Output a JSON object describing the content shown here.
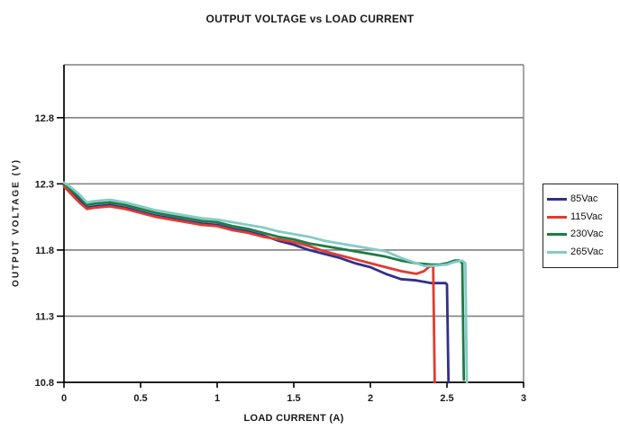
{
  "title": "OUTPUT VOLTAGE vs LOAD CURRENT",
  "colors": {
    "background": "#ffffff",
    "gridline": "#808080",
    "frame": "#808080",
    "axis": "#000000",
    "legend_border": "#222222",
    "text": "#1a1a1a"
  },
  "legend": {
    "position": "right",
    "items": [
      "85Vac",
      "115Vac",
      "230Vac",
      "265Vac"
    ]
  },
  "chart_data": {
    "type": "line",
    "title": "OUTPUT VOLTAGE vs LOAD CURRENT",
    "xlabel": "LOAD CURRENT (A)",
    "ylabel": "OUTPUT VOLTAGE (V)",
    "xlim": [
      0,
      3
    ],
    "ylim": [
      10.8,
      13.2
    ],
    "x_ticks": [
      0,
      0.5,
      1,
      1.5,
      2,
      2.5,
      3
    ],
    "x_tick_labels": [
      "0",
      "0.5",
      "1",
      "1.5",
      "2",
      "2.5",
      "3"
    ],
    "y_ticks": [
      10.8,
      11.3,
      11.8,
      12.3,
      12.8
    ],
    "y_tick_labels": [
      "10.8",
      "11.3",
      "11.8",
      "12.3",
      "12.8"
    ],
    "grid": "horizontal-only",
    "legend_position": "right-outside",
    "series": [
      {
        "name": "85Vac",
        "color": "#322f8d",
        "points": [
          [
            0,
            12.29
          ],
          [
            0.05,
            12.24
          ],
          [
            0.1,
            12.18
          ],
          [
            0.15,
            12.12
          ],
          [
            0.2,
            12.13
          ],
          [
            0.3,
            12.14
          ],
          [
            0.4,
            12.12
          ],
          [
            0.5,
            12.09
          ],
          [
            0.6,
            12.06
          ],
          [
            0.7,
            12.04
          ],
          [
            0.8,
            12.02
          ],
          [
            0.9,
            12.0
          ],
          [
            1.0,
            11.99
          ],
          [
            1.1,
            11.96
          ],
          [
            1.2,
            11.94
          ],
          [
            1.3,
            11.91
          ],
          [
            1.4,
            11.87
          ],
          [
            1.5,
            11.84
          ],
          [
            1.6,
            11.8
          ],
          [
            1.7,
            11.77
          ],
          [
            1.8,
            11.74
          ],
          [
            1.9,
            11.7
          ],
          [
            2.0,
            11.67
          ],
          [
            2.1,
            11.62
          ],
          [
            2.2,
            11.58
          ],
          [
            2.3,
            11.57
          ],
          [
            2.35,
            11.56
          ],
          [
            2.4,
            11.55
          ],
          [
            2.45,
            11.55
          ],
          [
            2.49,
            11.55
          ],
          [
            2.5,
            11.54
          ],
          [
            2.51,
            10.8
          ]
        ]
      },
      {
        "name": "115Vac",
        "color": "#e03c30",
        "points": [
          [
            0,
            12.28
          ],
          [
            0.05,
            12.22
          ],
          [
            0.1,
            12.16
          ],
          [
            0.15,
            12.11
          ],
          [
            0.2,
            12.12
          ],
          [
            0.3,
            12.13
          ],
          [
            0.4,
            12.11
          ],
          [
            0.5,
            12.08
          ],
          [
            0.6,
            12.05
          ],
          [
            0.7,
            12.03
          ],
          [
            0.8,
            12.01
          ],
          [
            0.9,
            11.99
          ],
          [
            1.0,
            11.98
          ],
          [
            1.1,
            11.95
          ],
          [
            1.2,
            11.93
          ],
          [
            1.3,
            11.9
          ],
          [
            1.4,
            11.88
          ],
          [
            1.5,
            11.86
          ],
          [
            1.6,
            11.83
          ],
          [
            1.7,
            11.79
          ],
          [
            1.8,
            11.76
          ],
          [
            1.9,
            11.73
          ],
          [
            2.0,
            11.7
          ],
          [
            2.1,
            11.67
          ],
          [
            2.2,
            11.64
          ],
          [
            2.25,
            11.63
          ],
          [
            2.3,
            11.62
          ],
          [
            2.35,
            11.64
          ],
          [
            2.38,
            11.67
          ],
          [
            2.4,
            11.68
          ],
          [
            2.41,
            11.67
          ],
          [
            2.42,
            10.8
          ]
        ]
      },
      {
        "name": "230Vac",
        "color": "#1e7c44",
        "points": [
          [
            0,
            12.3
          ],
          [
            0.05,
            12.25
          ],
          [
            0.1,
            12.2
          ],
          [
            0.15,
            12.14
          ],
          [
            0.2,
            12.15
          ],
          [
            0.3,
            12.16
          ],
          [
            0.4,
            12.14
          ],
          [
            0.5,
            12.11
          ],
          [
            0.6,
            12.08
          ],
          [
            0.7,
            12.06
          ],
          [
            0.8,
            12.04
          ],
          [
            0.9,
            12.02
          ],
          [
            1.0,
            12.01
          ],
          [
            1.1,
            11.98
          ],
          [
            1.2,
            11.96
          ],
          [
            1.3,
            11.93
          ],
          [
            1.4,
            11.9
          ],
          [
            1.5,
            11.88
          ],
          [
            1.6,
            11.85
          ],
          [
            1.7,
            11.83
          ],
          [
            1.8,
            11.81
          ],
          [
            1.9,
            11.79
          ],
          [
            2.0,
            11.77
          ],
          [
            2.1,
            11.75
          ],
          [
            2.2,
            11.72
          ],
          [
            2.3,
            11.7
          ],
          [
            2.4,
            11.69
          ],
          [
            2.45,
            11.69
          ],
          [
            2.5,
            11.7
          ],
          [
            2.55,
            11.72
          ],
          [
            2.58,
            11.72
          ],
          [
            2.6,
            11.7
          ],
          [
            2.61,
            10.82
          ]
        ]
      },
      {
        "name": "265Vac",
        "color": "#85cbc6",
        "points": [
          [
            0,
            12.31
          ],
          [
            0.05,
            12.27
          ],
          [
            0.1,
            12.22
          ],
          [
            0.15,
            12.16
          ],
          [
            0.2,
            12.17
          ],
          [
            0.3,
            12.18
          ],
          [
            0.4,
            12.16
          ],
          [
            0.5,
            12.13
          ],
          [
            0.6,
            12.1
          ],
          [
            0.7,
            12.08
          ],
          [
            0.8,
            12.06
          ],
          [
            0.9,
            12.04
          ],
          [
            1.0,
            12.03
          ],
          [
            1.1,
            12.01
          ],
          [
            1.2,
            11.99
          ],
          [
            1.3,
            11.97
          ],
          [
            1.4,
            11.94
          ],
          [
            1.5,
            11.92
          ],
          [
            1.6,
            11.9
          ],
          [
            1.7,
            11.87
          ],
          [
            1.8,
            11.85
          ],
          [
            1.9,
            11.83
          ],
          [
            2.0,
            11.81
          ],
          [
            2.1,
            11.79
          ],
          [
            2.2,
            11.74
          ],
          [
            2.3,
            11.7
          ],
          [
            2.35,
            11.68
          ],
          [
            2.4,
            11.68
          ],
          [
            2.5,
            11.69
          ],
          [
            2.55,
            11.71
          ],
          [
            2.6,
            11.72
          ],
          [
            2.62,
            11.7
          ],
          [
            2.63,
            10.8
          ]
        ]
      }
    ]
  }
}
